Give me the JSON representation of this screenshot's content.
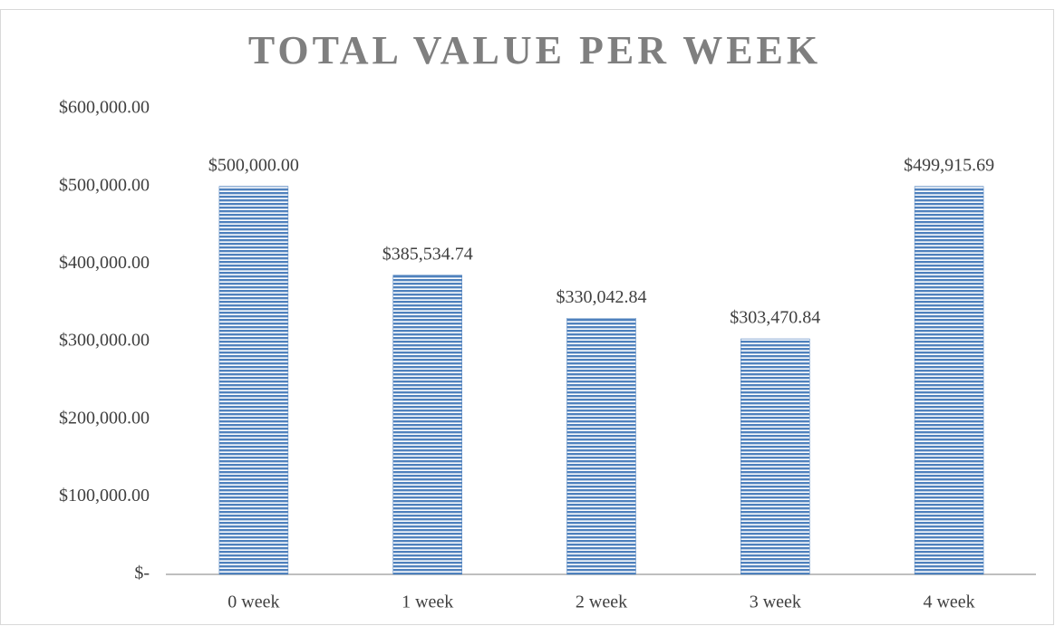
{
  "chart_data": {
    "type": "bar",
    "title": "TOTAL VALUE PER WEEK",
    "categories": [
      "0 week",
      "1 week",
      "2 week",
      "3 week",
      "4 week"
    ],
    "values": [
      500000.0,
      385534.74,
      330042.84,
      303470.84,
      499915.69
    ],
    "value_labels": [
      "$500,000.00",
      "$385,534.74",
      "$330,042.84",
      "$303,470.84",
      "$499,915.69"
    ],
    "color": "#4f81bd",
    "ylim": [
      0,
      600000
    ],
    "yticks": [
      {
        "value": 0,
        "label": "$-"
      },
      {
        "value": 100000,
        "label": "$100,000.00"
      },
      {
        "value": 200000,
        "label": "$200,000.00"
      },
      {
        "value": 300000,
        "label": "$300,000.00"
      },
      {
        "value": 400000,
        "label": "$400,000.00"
      },
      {
        "value": 500000,
        "label": "$500,000.00"
      },
      {
        "value": 600000,
        "label": "$600,000.00"
      }
    ],
    "grid": false
  }
}
